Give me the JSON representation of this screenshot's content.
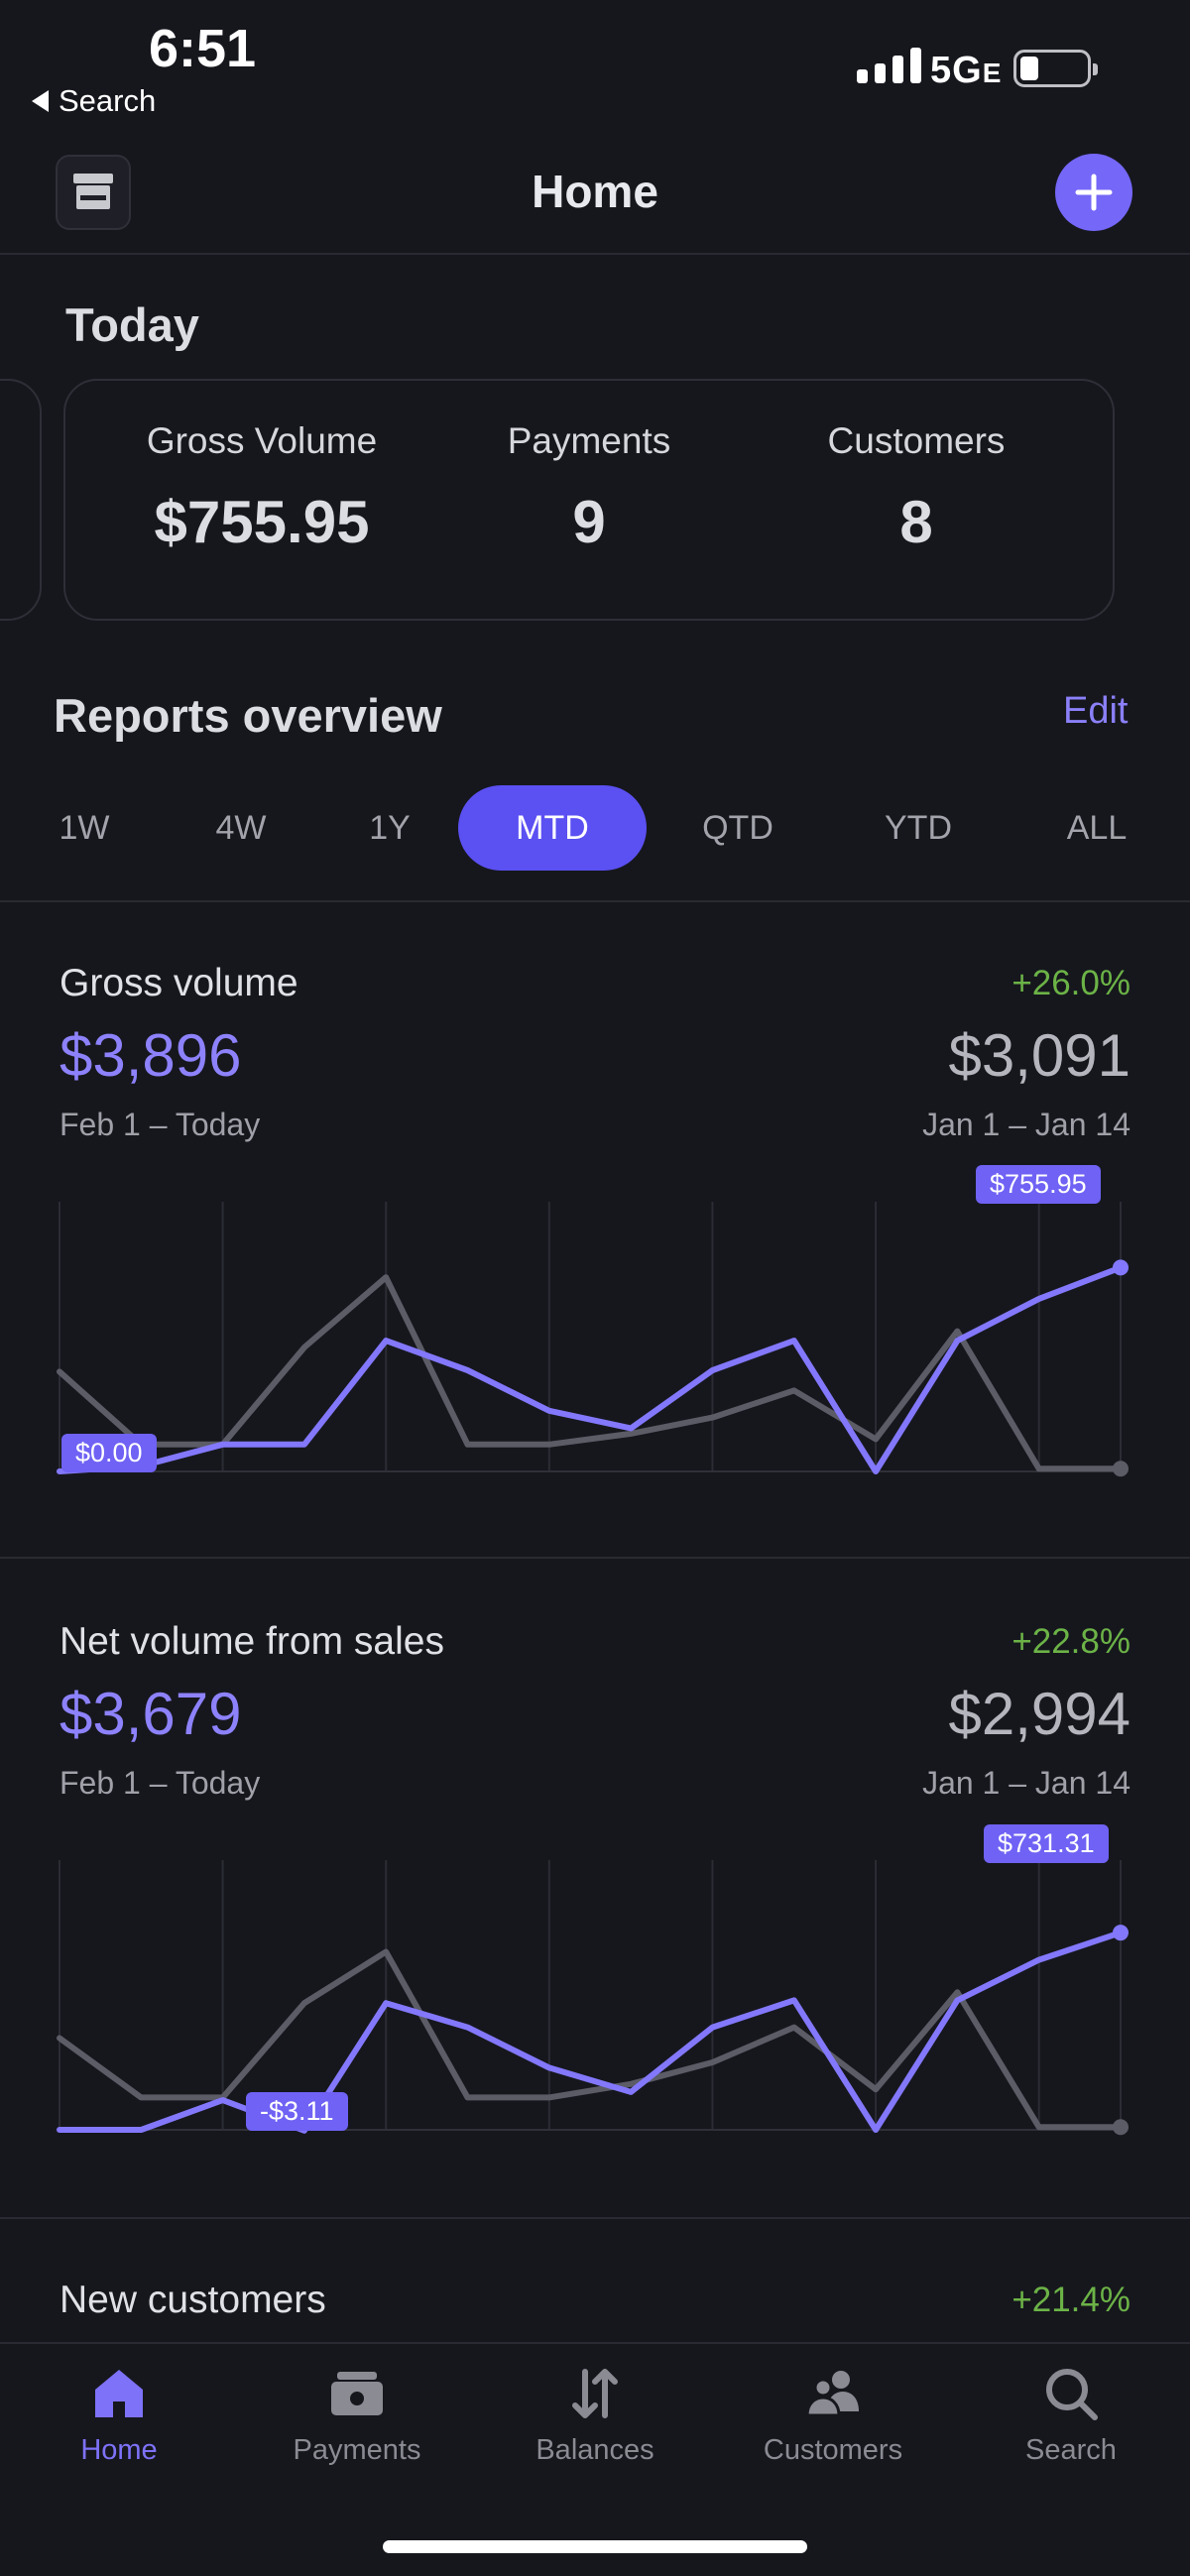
{
  "status": {
    "time": "6:51",
    "back_label": "Search",
    "network": "5G",
    "network_suffix": "E",
    "battery_level": 0.2
  },
  "header": {
    "title": "Home",
    "store_icon": "storefront-icon",
    "add_icon": "plus-icon"
  },
  "today": {
    "title": "Today",
    "stats": [
      {
        "label": "Gross Volume",
        "value": "$755.95"
      },
      {
        "label": "Payments",
        "value": "9"
      },
      {
        "label": "Customers",
        "value": "8"
      }
    ]
  },
  "reports": {
    "title": "Reports overview",
    "edit_label": "Edit",
    "tabs": [
      "1W",
      "4W",
      "1Y",
      "MTD",
      "QTD",
      "YTD",
      "ALL"
    ],
    "active_tab": "MTD"
  },
  "gross_volume": {
    "name": "Gross volume",
    "change": "+26.0%",
    "current_value": "$3,896",
    "current_range": "Feb 1 – Today",
    "previous_value": "$3,091",
    "previous_range": "Jan 1 – Jan 14",
    "start_label": "$0.00",
    "end_label": "$755.95"
  },
  "net_volume": {
    "name": "Net volume from sales",
    "change": "+22.8%",
    "current_value": "$3,679",
    "current_range": "Feb 1 – Today",
    "previous_value": "$2,994",
    "previous_range": "Jan 1 – Jan 14",
    "min_label": "-$3.11",
    "end_label": "$731.31"
  },
  "new_customers": {
    "name": "New customers",
    "change": "+21.4%"
  },
  "chart_data": [
    {
      "type": "line",
      "x": [
        1,
        2,
        3,
        4,
        5,
        6,
        7,
        8,
        9,
        10,
        11,
        12,
        13,
        14
      ],
      "series": [
        {
          "values": [
            0,
            20,
            100,
            100,
            485,
            375,
            225,
            160,
            375,
            485,
            0,
            485,
            640,
            756
          ]
        },
        {
          "values": [
            370,
            100,
            100,
            460,
            720,
            100,
            100,
            140,
            200,
            300,
            120,
            520,
            10,
            10
          ]
        }
      ],
      "ylim": [
        0,
        1000
      ],
      "color_current": "#8378fb",
      "color_previous": "#5b5c66"
    },
    {
      "type": "line",
      "x": [
        1,
        2,
        3,
        4,
        5,
        6,
        7,
        8,
        9,
        10,
        11,
        12,
        13,
        14
      ],
      "series": [
        {
          "values": [
            0,
            0,
            110,
            -3,
            470,
            380,
            230,
            140,
            380,
            480,
            0,
            480,
            630,
            731
          ]
        },
        {
          "values": [
            340,
            120,
            120,
            470,
            660,
            120,
            120,
            170,
            250,
            380,
            150,
            510,
            10,
            10
          ]
        }
      ],
      "ylim": [
        0,
        1000
      ],
      "color_current": "#8378fb",
      "color_previous": "#5b5c66"
    }
  ],
  "nav": {
    "items": [
      {
        "label": "Home",
        "icon": "home-icon",
        "active": true
      },
      {
        "label": "Payments",
        "icon": "payments-icon",
        "active": false
      },
      {
        "label": "Balances",
        "icon": "balances-icon",
        "active": false
      },
      {
        "label": "Customers",
        "icon": "customers-icon",
        "active": false
      },
      {
        "label": "Search",
        "icon": "search-icon",
        "active": false
      }
    ]
  },
  "colors": {
    "accent": "#6357f5",
    "positive": "#6cb347",
    "background": "#16171d"
  }
}
